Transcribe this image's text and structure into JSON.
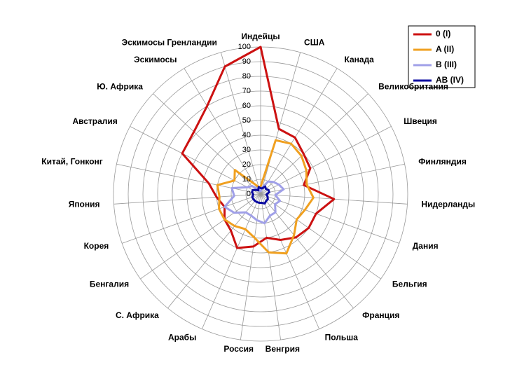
{
  "chart_data": {
    "type": "radar",
    "categories": [
      "Индейцы",
      "США",
      "Канада",
      "Великобритания",
      "Швеция",
      "Финляндия",
      "Нидерланды",
      "Дания",
      "Бельгия",
      "Франция",
      "Польша",
      "Венгрия",
      "Россия",
      "Арабы",
      "С. Африка",
      "Бенгалия",
      "Корея",
      "Япония",
      "Китай, Гонконг",
      "Австралия",
      "Ю. Африка",
      "Эскимосы",
      "Эскимосы Гренландии"
    ],
    "series": [
      {
        "name": "0 (I)",
        "color": "#cc1111",
        "values": [
          100,
          46,
          45,
          40,
          38,
          30,
          50,
          40,
          40,
          38,
          34,
          30,
          36,
          40,
          32,
          30,
          26,
          30,
          36,
          60,
          62,
          70,
          90
        ]
      },
      {
        "name": "A (II)",
        "color": "#f0a020",
        "values": [
          5,
          38,
          40,
          38,
          35,
          32,
          36,
          32,
          30,
          36,
          44,
          40,
          30,
          26,
          28,
          30,
          30,
          28,
          30,
          20,
          24,
          8,
          5
        ]
      },
      {
        "name": "B (III)",
        "color": "#a0a0e8",
        "values": [
          2,
          5,
          10,
          12,
          14,
          16,
          10,
          14,
          12,
          16,
          16,
          20,
          18,
          16,
          16,
          22,
          26,
          18,
          20,
          10,
          8,
          4,
          2
        ]
      },
      {
        "name": "AB (IV)",
        "color": "#0a0aa0",
        "values": [
          4,
          4,
          6,
          5,
          6,
          6,
          4,
          5,
          6,
          6,
          7,
          6,
          6,
          6,
          6,
          6,
          6,
          5,
          6,
          6,
          4,
          3,
          5
        ]
      }
    ],
    "rlim": [
      0,
      100
    ],
    "rticks": [
      0,
      10,
      20,
      30,
      40,
      50,
      60,
      70,
      80,
      90,
      100
    ],
    "grid": true,
    "legend": "top-right"
  }
}
